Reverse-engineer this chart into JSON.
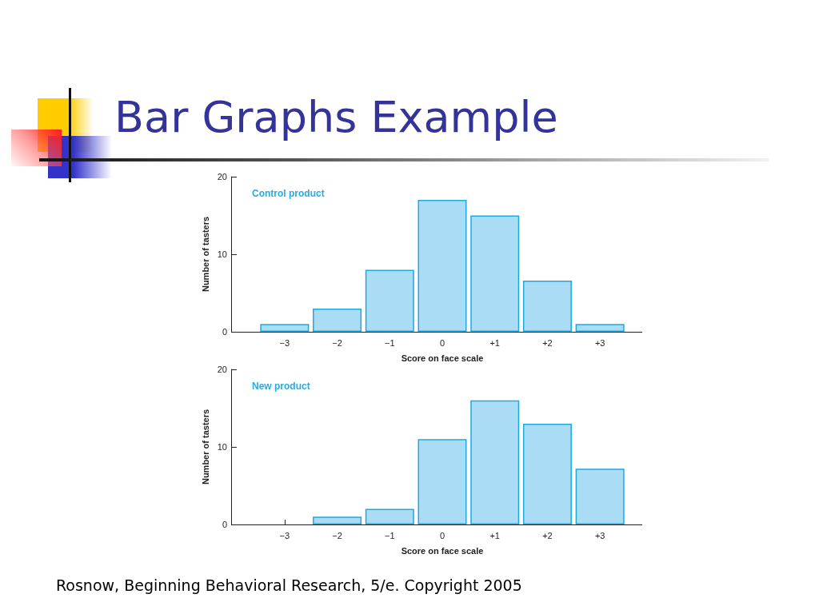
{
  "chart_data": [
    {
      "type": "bar",
      "title": "Bar Graphs Example",
      "categories": [
        "−3",
        "−2",
        "−1",
        "0",
        "+1",
        "+2",
        "+3"
      ],
      "series": [
        {
          "name": "Control product",
          "color": "#aadcf5",
          "values": [
            1,
            3,
            8,
            17,
            15,
            6.6,
            1
          ]
        }
      ],
      "xlabel": "Score on face scale",
      "ylabel": "Number of tasters",
      "ylim": [
        0,
        20
      ],
      "yticks": [
        0,
        10,
        20
      ]
    },
    {
      "type": "bar",
      "categories": [
        "−3",
        "−2",
        "−1",
        "0",
        "+1",
        "+2",
        "+3"
      ],
      "series": [
        {
          "name": "New product",
          "color": "#aadcf5",
          "values": [
            null,
            1,
            2,
            11,
            16,
            13,
            7.2
          ]
        }
      ],
      "xlabel": "Score on face scale",
      "ylabel": "Number of tasters",
      "ylim": [
        0,
        20
      ],
      "yticks": [
        0,
        10,
        20
      ],
      "annotations": [
        "Rosnow, Beginning Behavioral Research, 5/e. Copyright 2005"
      ]
    }
  ]
}
